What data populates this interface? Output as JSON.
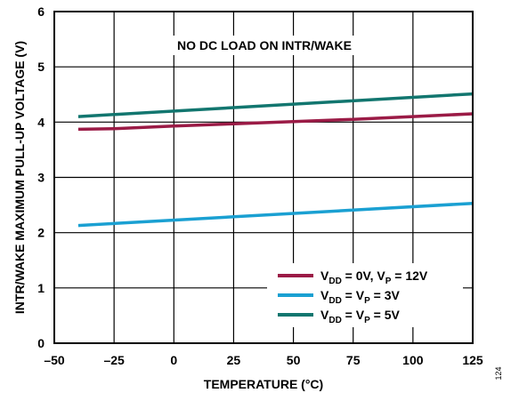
{
  "chart_data": {
    "type": "line",
    "xlabel": "TEMPERATURE (°C)",
    "ylabel": "INTR/WAKE MAXIMUM PULL-UP VOLTAGE (V)",
    "xlim": [
      -50,
      125
    ],
    "ylim": [
      0,
      6
    ],
    "x_ticks": [
      -50,
      -25,
      0,
      25,
      50,
      75,
      100,
      125
    ],
    "y_ticks": [
      0,
      1,
      2,
      3,
      4,
      5,
      6
    ],
    "x_tick_labels": [
      "–50",
      "–25",
      "0",
      "25",
      "50",
      "75",
      "100",
      "125"
    ],
    "y_tick_labels": [
      "0",
      "1",
      "2",
      "3",
      "4",
      "5",
      "6"
    ],
    "grid": true,
    "annotation": "NO DC LOAD ON INTR/WAKE",
    "legend_position": "bottom-right",
    "series": [
      {
        "legend": [
          {
            "text": "V",
            "sub": false
          },
          {
            "text": "DD",
            "sub": true
          },
          {
            "text": " = 0V, V",
            "sub": false
          },
          {
            "text": "P",
            "sub": true
          },
          {
            "text": " = 12V",
            "sub": false
          }
        ],
        "color": "#9b1b46",
        "x": [
          -40,
          -25,
          0,
          25,
          50,
          75,
          100,
          125
        ],
        "y": [
          3.87,
          3.88,
          3.93,
          3.97,
          4.01,
          4.05,
          4.1,
          4.15
        ]
      },
      {
        "legend": [
          {
            "text": "V",
            "sub": false
          },
          {
            "text": "DD",
            "sub": true
          },
          {
            "text": " = V",
            "sub": false
          },
          {
            "text": "P",
            "sub": true
          },
          {
            "text": " = 3V",
            "sub": false
          }
        ],
        "color": "#1aa0d2",
        "x": [
          -40,
          125
        ],
        "y": [
          2.13,
          2.53
        ]
      },
      {
        "legend": [
          {
            "text": "V",
            "sub": false
          },
          {
            "text": "DD",
            "sub": true
          },
          {
            "text": " = V",
            "sub": false
          },
          {
            "text": "P",
            "sub": true
          },
          {
            "text": " = 5V",
            "sub": false
          }
        ],
        "color": "#12766f",
        "x": [
          -40,
          125
        ],
        "y": [
          4.1,
          4.51
        ]
      }
    ],
    "figure_id": "124"
  }
}
